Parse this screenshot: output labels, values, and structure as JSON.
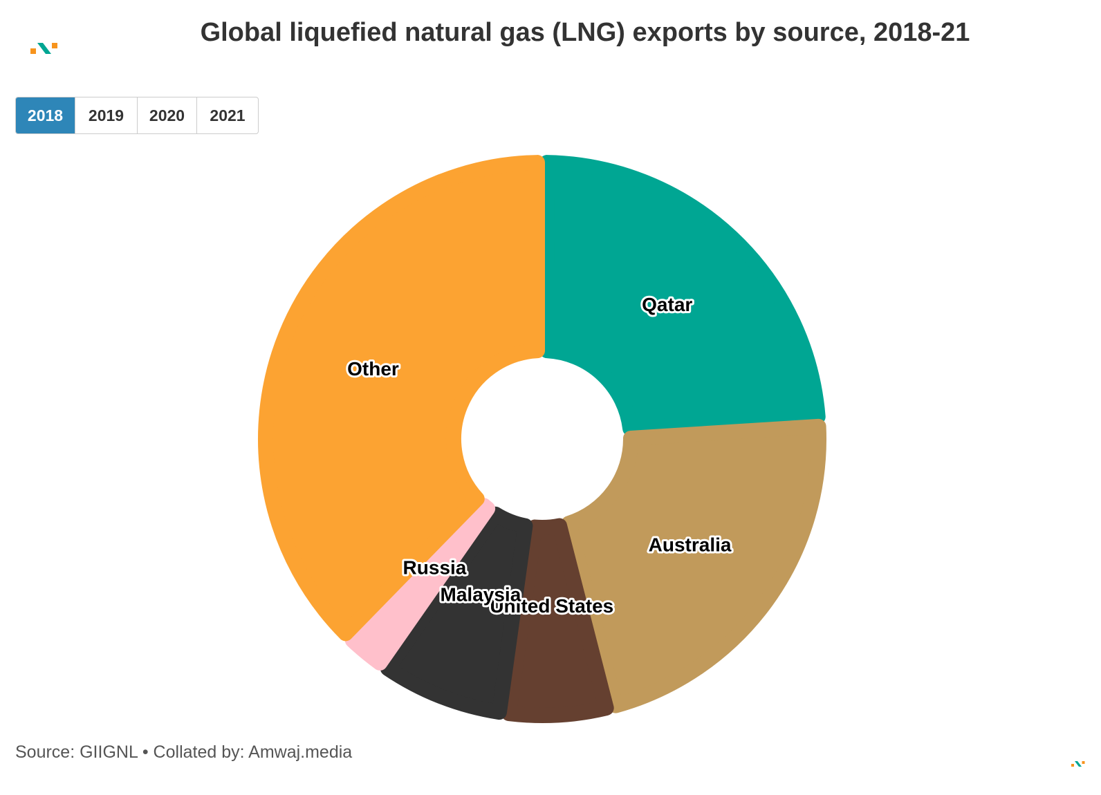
{
  "header": {
    "title": "Global liquefied natural gas (LNG) exports by source, 2018-21"
  },
  "tabs": [
    {
      "label": "2018",
      "active": true
    },
    {
      "label": "2019",
      "active": false
    },
    {
      "label": "2020",
      "active": false
    },
    {
      "label": "2021",
      "active": false
    }
  ],
  "chart_data": {
    "type": "pie",
    "variant": "donut",
    "title": "Global liquefied natural gas (LNG) exports by source, 2018-21",
    "selected_year": "2018",
    "start_angle_deg": 0,
    "slices": [
      {
        "label": "Qatar",
        "value": 24.0,
        "color": "#00a693"
      },
      {
        "label": "Australia",
        "value": 22.0,
        "color": "#c19a5b"
      },
      {
        "label": "United States",
        "value": 6.2,
        "color": "#654030"
      },
      {
        "label": "Malaysia",
        "value": 7.5,
        "color": "#333333"
      },
      {
        "label": "Russia",
        "value": 2.6,
        "color": "#ffc0cb"
      },
      {
        "label": "Other",
        "value": 37.7,
        "color": "#fca332"
      }
    ]
  },
  "footer": {
    "source": "Source: GIIGNL • Collated by: Amwaj.media"
  },
  "colors": {
    "logo_orange": "#f7941d",
    "logo_teal": "#00a693",
    "active_tab": "#2e86b8"
  }
}
